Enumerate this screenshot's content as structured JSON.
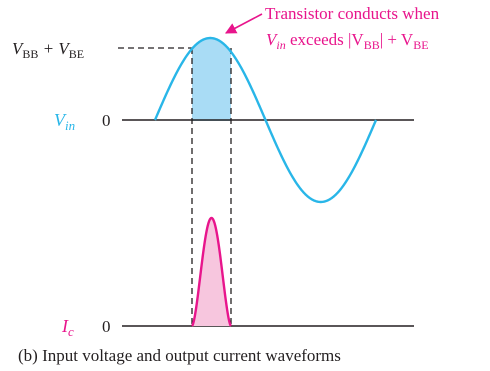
{
  "annotation": {
    "line1": "Transistor conducts when",
    "line2_vin": "V",
    "line2_vin_sub": "in",
    "line2_text": " exceeds |V",
    "line2_bb_sub": "BB",
    "line2_plus": "| + V",
    "line2_be_sub": "BE"
  },
  "labels": {
    "vbb_v1": "V",
    "vbb_sub1": "BB",
    "vbb_plus": " + V",
    "vbb_sub2": "BE",
    "vin_v": "V",
    "vin_sub": "in",
    "vin_zero": "0",
    "ic_i": "I",
    "ic_sub": "c",
    "ic_zero": "0"
  },
  "caption": "(b) Input voltage and output current waveforms",
  "colors": {
    "vin_wave": "#29b6e8",
    "conduct_fill": "#a9dcf5",
    "ic_wave": "#e8158c",
    "ic_fill": "#f7c6de",
    "annotation": "#e8158c",
    "axis": "#231f20"
  }
}
